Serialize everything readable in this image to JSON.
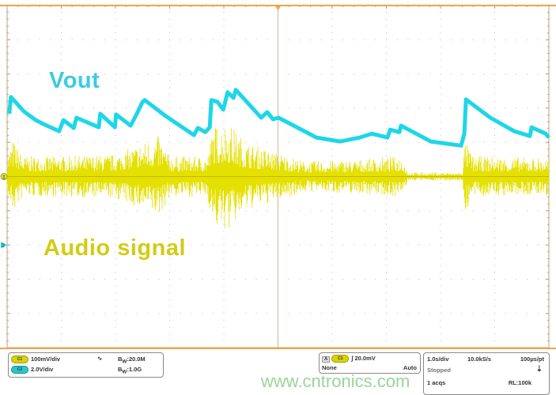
{
  "chart_data": {
    "type": "line",
    "title": "",
    "xlabel": "",
    "ylabel": "",
    "grid": true,
    "divisions": {
      "x": 10,
      "y": 10
    },
    "x_unit": "s",
    "xlim": [
      0,
      10
    ],
    "annotations": [
      "Vout",
      "Audio signal"
    ],
    "series": [
      {
        "name": "Vout",
        "channel": "C2",
        "color": "#1ed6e8",
        "unit": "V",
        "points": [
          [
            0.04,
            7.67
          ],
          [
            0.07,
            8.65
          ],
          [
            0.31,
            7.81
          ],
          [
            0.53,
            7.3
          ],
          [
            0.67,
            7.07
          ],
          [
            0.96,
            6.65
          ],
          [
            1.04,
            7.3
          ],
          [
            1.23,
            6.84
          ],
          [
            1.28,
            7.44
          ],
          [
            1.69,
            6.88
          ],
          [
            1.72,
            7.67
          ],
          [
            1.99,
            6.88
          ],
          [
            2.01,
            7.63
          ],
          [
            2.28,
            6.98
          ],
          [
            2.38,
            7.58
          ],
          [
            2.5,
            8.37
          ],
          [
            2.54,
            8.47
          ],
          [
            2.93,
            7.53
          ],
          [
            3.45,
            6.42
          ],
          [
            3.52,
            6.84
          ],
          [
            3.66,
            6.6
          ],
          [
            3.74,
            6.88
          ],
          [
            3.77,
            8.47
          ],
          [
            3.88,
            8.37
          ],
          [
            3.99,
            7.91
          ],
          [
            4.07,
            8.93
          ],
          [
            4.18,
            8.6
          ],
          [
            4.22,
            9.07
          ],
          [
            4.69,
            7.44
          ],
          [
            4.8,
            7.77
          ],
          [
            4.91,
            7.35
          ],
          [
            5.01,
            7.44
          ],
          [
            5.71,
            6.28
          ],
          [
            6.15,
            6.05
          ],
          [
            6.51,
            6.28
          ],
          [
            6.73,
            6.51
          ],
          [
            7.02,
            6.28
          ],
          [
            7.07,
            6.74
          ],
          [
            7.24,
            6.6
          ],
          [
            7.27,
            6.98
          ],
          [
            7.82,
            6.05
          ],
          [
            8.38,
            5.81
          ],
          [
            8.44,
            6.51
          ],
          [
            8.47,
            8.51
          ],
          [
            8.92,
            7.44
          ],
          [
            9.36,
            6.65
          ],
          [
            9.65,
            6.37
          ],
          [
            9.68,
            6.88
          ],
          [
            9.94,
            6.51
          ],
          [
            10.0,
            6.28
          ]
        ]
      },
      {
        "name": "Audio signal",
        "channel": "C1",
        "color": "#e4e000",
        "unit": "mV",
        "envelope_amplitude": [
          [
            0,
            60
          ],
          [
            0.1,
            110
          ],
          [
            0.3,
            60
          ],
          [
            1.0,
            60
          ],
          [
            2.0,
            65
          ],
          [
            2.5,
            100
          ],
          [
            2.8,
            120
          ],
          [
            3.0,
            60
          ],
          [
            3.7,
            60
          ],
          [
            3.8,
            150
          ],
          [
            4.1,
            160
          ],
          [
            4.4,
            100
          ],
          [
            5.0,
            70
          ],
          [
            5.5,
            45
          ],
          [
            6.5,
            50
          ],
          [
            7.3,
            60
          ],
          [
            7.4,
            12
          ],
          [
            8.4,
            12
          ],
          [
            8.45,
            110
          ],
          [
            8.6,
            60
          ],
          [
            10,
            55
          ]
        ]
      }
    ]
  },
  "colors": {
    "frame": "#f0a448",
    "grid": "#b8b8b8",
    "vout_label": "#3ccbe3",
    "audio_label": "#d2cc14"
  },
  "labels": {
    "vout": "Vout",
    "audio": "Audio signal"
  },
  "markers": {
    "ch1": "1",
    "ch2": "2"
  },
  "status": {
    "ch1": {
      "badge": "C1",
      "scale": "100mV/div",
      "bw": "20.0M"
    },
    "ch2": {
      "badge": "C2",
      "scale": "2.0V/div",
      "bw": "1.0G"
    },
    "bw_prefix": "B",
    "bw_sub": "W",
    "trigger": {
      "mode_label": "A",
      "source": "C1",
      "level": "20.0mV",
      "coupling": "None",
      "sweep": "Auto"
    },
    "acq": {
      "timebase": "1.0s/div",
      "rate": "10.0kS/s",
      "resolution": "100µs/pt",
      "state": "Stopped",
      "count": "1 acqs",
      "record_length": "RL:100k"
    }
  },
  "watermark": "www.cntronics.com"
}
